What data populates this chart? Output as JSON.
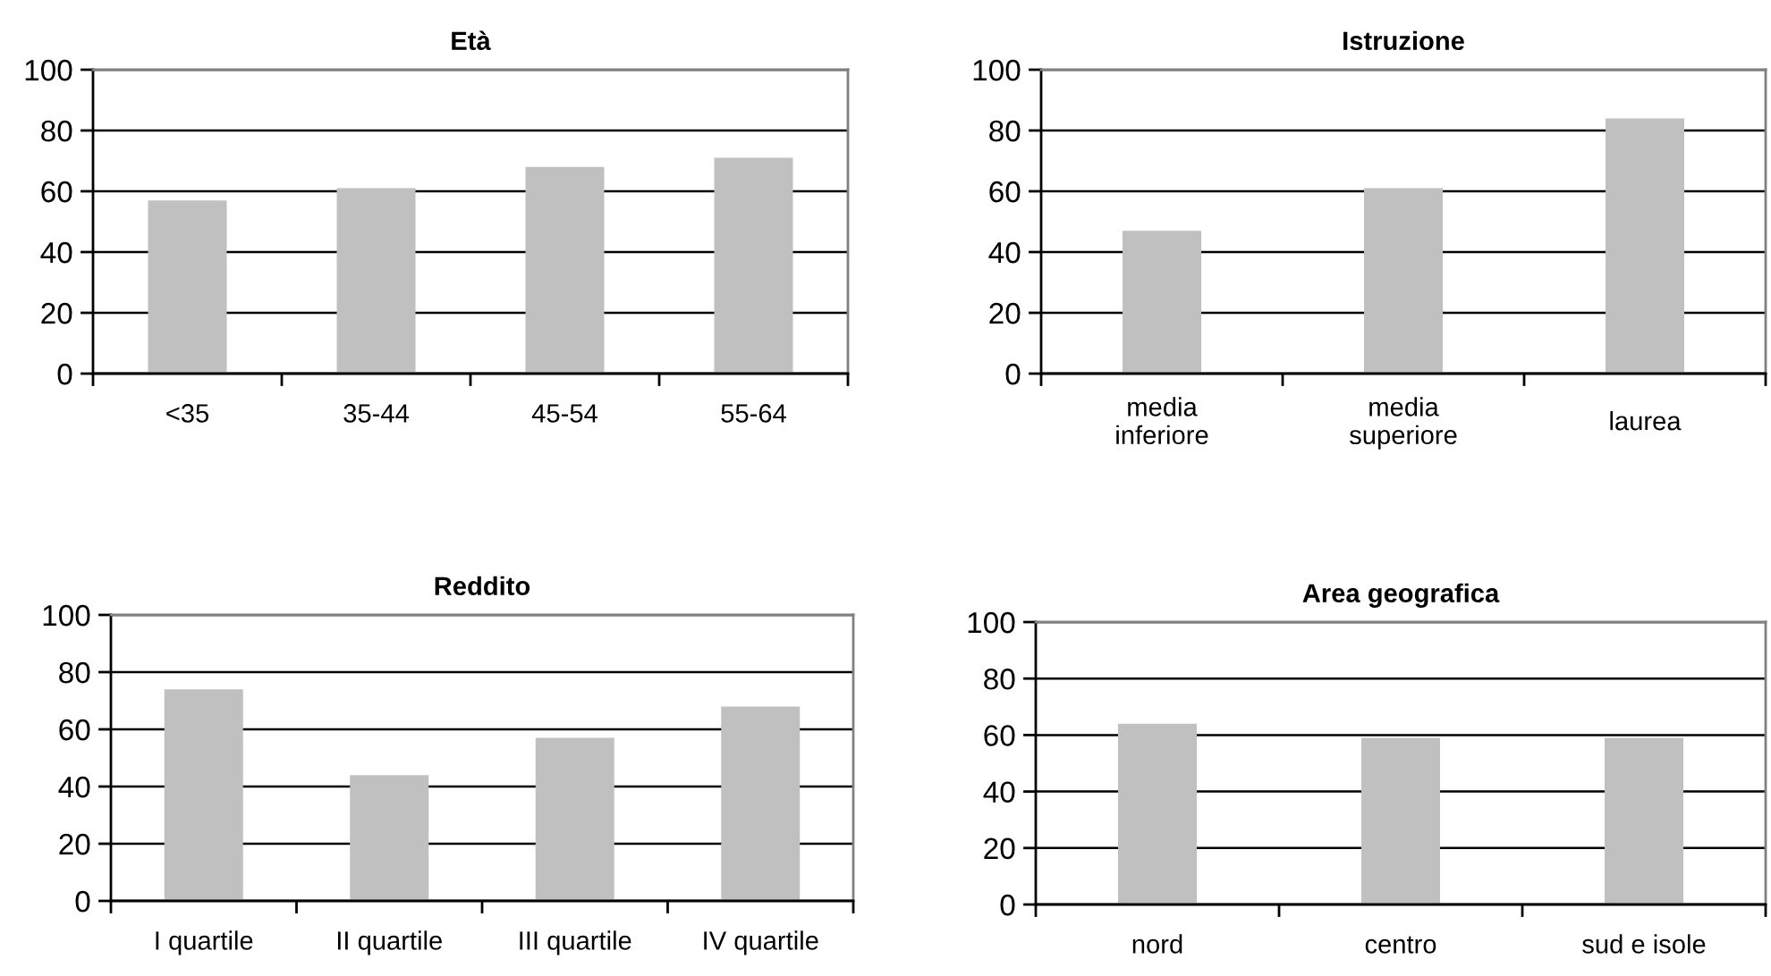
{
  "chart_data": [
    {
      "type": "bar",
      "title": "Età",
      "categories": [
        "<35",
        "35-44",
        "45-54",
        "55-64"
      ],
      "values": [
        57,
        61,
        68,
        71
      ],
      "color": "#c0c0c0",
      "ylim": [
        0,
        100
      ],
      "yticks": [
        0,
        20,
        40,
        60,
        80,
        100
      ],
      "grid": "y"
    },
    {
      "type": "bar",
      "title": "Istruzione",
      "categories": [
        "media\ninferiore",
        "media\nsuperiore",
        "laurea"
      ],
      "values": [
        47,
        61,
        84
      ],
      "color": "#c0c0c0",
      "ylim": [
        0,
        100
      ],
      "yticks": [
        0,
        20,
        40,
        60,
        80,
        100
      ],
      "grid": "y"
    },
    {
      "type": "bar",
      "title": "Reddito",
      "categories": [
        "I quartile",
        "II quartile",
        "III quartile",
        "IV quartile"
      ],
      "values": [
        74,
        44,
        57,
        68
      ],
      "color": "#c0c0c0",
      "ylim": [
        0,
        100
      ],
      "yticks": [
        0,
        20,
        40,
        60,
        80,
        100
      ],
      "grid": "y"
    },
    {
      "type": "bar",
      "title": "Area geografica",
      "categories": [
        "nord",
        "centro",
        "sud e isole"
      ],
      "values": [
        64,
        59,
        59
      ],
      "color": "#c0c0c0",
      "ylim": [
        0,
        100
      ],
      "yticks": [
        0,
        20,
        40,
        60,
        80,
        100
      ],
      "grid": "y"
    }
  ]
}
